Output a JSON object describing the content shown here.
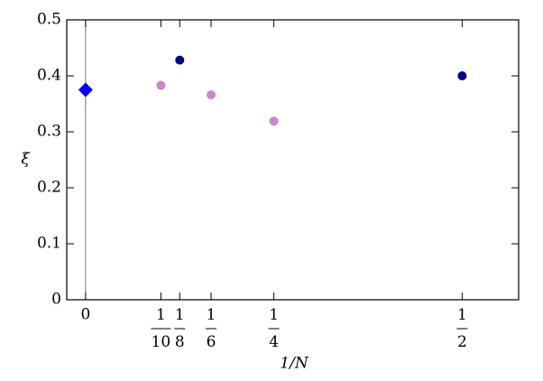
{
  "chart_data": {
    "type": "scatter",
    "xlabel": "1/N",
    "ylabel": "ξ",
    "xlim": [
      -0.025,
      0.575
    ],
    "ylim": [
      0,
      0.5
    ],
    "xticks": [
      0,
      {
        "value": 0.1,
        "label": "1/10"
      },
      {
        "value": 0.125,
        "label": "1/8"
      },
      {
        "value": 0.16667,
        "label": "1/6"
      },
      {
        "value": 0.25,
        "label": "1/4"
      },
      {
        "value": 0.5,
        "label": "1/2"
      }
    ],
    "yticks": [
      0,
      0.1,
      0.2,
      0.3,
      0.4,
      0.5
    ],
    "series": [
      {
        "color": "#0000ff",
        "marker": "diamond",
        "x": [
          0
        ],
        "values": [
          0.375
        ]
      },
      {
        "color": "#00008b",
        "marker": "circle",
        "x": [
          0.125,
          0.5
        ],
        "values": [
          0.428,
          0.4
        ]
      },
      {
        "color": "#c58ac8",
        "marker": "circle",
        "x": [
          0.1,
          0.16667,
          0.25
        ],
        "values": [
          0.383,
          0.366,
          0.319
        ]
      }
    ]
  }
}
